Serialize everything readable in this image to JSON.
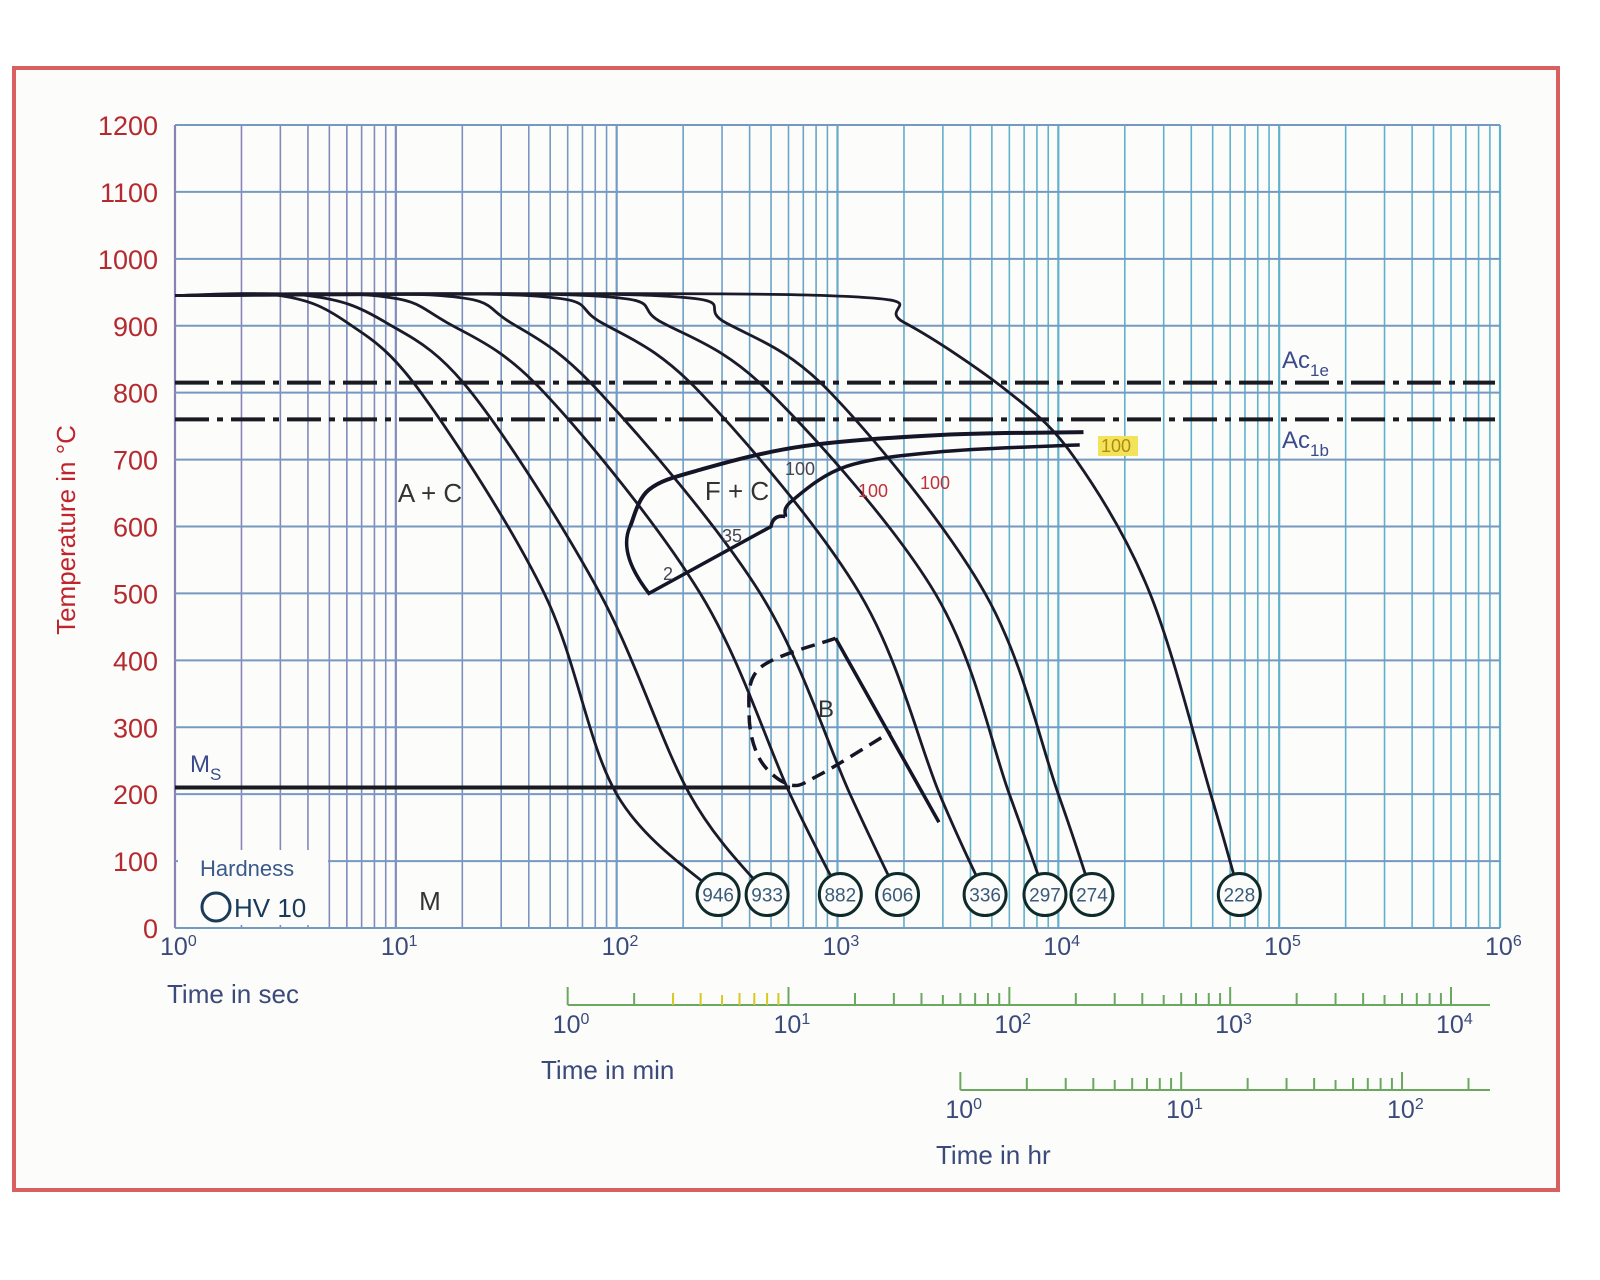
{
  "chart_data": {
    "type": "line",
    "subtype": "continuous cooling transformation diagram",
    "ylabel": "Temperature in °C",
    "ylim": [
      0,
      1200
    ],
    "yticks": [
      0,
      100,
      200,
      300,
      400,
      500,
      600,
      700,
      800,
      900,
      1000,
      1100,
      1200
    ],
    "x_scale": "log",
    "xlim_sec": [
      1,
      1000000
    ],
    "grid": true,
    "x_axes": [
      {
        "label": "Time in sec",
        "ticks": [
          {
            "base": "10",
            "exp": "0"
          },
          {
            "base": "10",
            "exp": "1"
          },
          {
            "base": "10",
            "exp": "2"
          },
          {
            "base": "10",
            "exp": "3"
          },
          {
            "base": "10",
            "exp": "4"
          },
          {
            "base": "10",
            "exp": "5"
          },
          {
            "base": "10",
            "exp": "6"
          }
        ],
        "unit_sec": 1
      },
      {
        "label": "Time in min",
        "ticks": [
          {
            "base": "10",
            "exp": "0"
          },
          {
            "base": "10",
            "exp": "1"
          },
          {
            "base": "10",
            "exp": "2"
          },
          {
            "base": "10",
            "exp": "3"
          },
          {
            "base": "10",
            "exp": "4"
          }
        ],
        "unit_sec": 60
      },
      {
        "label": "Time in hr",
        "ticks": [
          {
            "base": "10",
            "exp": "0"
          },
          {
            "base": "10",
            "exp": "1"
          },
          {
            "base": "10",
            "exp": "2"
          }
        ],
        "unit_sec": 3600
      }
    ],
    "cooling_curves": [
      {
        "hardness": "946",
        "points": [
          [
            1,
            945
          ],
          [
            3,
            945
          ],
          [
            6,
            905
          ],
          [
            13,
            800
          ],
          [
            47,
            500
          ],
          [
            100,
            200
          ],
          [
            288,
            50
          ]
        ]
      },
      {
        "hardness": "933",
        "points": [
          [
            1,
            945
          ],
          [
            4,
            945
          ],
          [
            9,
            905
          ],
          [
            22,
            800
          ],
          [
            84,
            500
          ],
          [
            214,
            200
          ],
          [
            480,
            50
          ]
        ]
      },
      {
        "hardness": "882",
        "points": [
          [
            1,
            945
          ],
          [
            8,
            945
          ],
          [
            17,
            905
          ],
          [
            47,
            800
          ],
          [
            239,
            500
          ],
          [
            610,
            200
          ],
          [
            1030,
            50
          ]
        ]
      },
      {
        "hardness": "606",
        "points": [
          [
            1,
            945
          ],
          [
            16,
            945
          ],
          [
            33,
            905
          ],
          [
            84,
            800
          ],
          [
            447,
            500
          ],
          [
            1140,
            200
          ],
          [
            1870,
            50
          ]
        ]
      },
      {
        "hardness": "336",
        "points": [
          [
            1,
            945
          ],
          [
            40,
            945
          ],
          [
            85,
            905
          ],
          [
            239,
            800
          ],
          [
            1260,
            500
          ],
          [
            2900,
            200
          ],
          [
            4660,
            50
          ]
        ]
      },
      {
        "hardness": "297",
        "points": [
          [
            1,
            945
          ],
          [
            75,
            945
          ],
          [
            160,
            905
          ],
          [
            495,
            800
          ],
          [
            2770,
            500
          ],
          [
            6000,
            200
          ],
          [
            8700,
            50
          ]
        ]
      },
      {
        "hardness": "274",
        "points": [
          [
            1,
            945
          ],
          [
            150,
            945
          ],
          [
            310,
            905
          ],
          [
            930,
            800
          ],
          [
            4660,
            500
          ],
          [
            10000,
            200
          ],
          [
            14200,
            50
          ]
        ]
      },
      {
        "hardness": "228",
        "points": [
          [
            1,
            945
          ],
          [
            900,
            945
          ],
          [
            2000,
            905
          ],
          [
            6000,
            800
          ],
          [
            12000,
            700
          ],
          [
            26000,
            500
          ],
          [
            49000,
            200
          ],
          [
            66000,
            50
          ]
        ]
      }
    ],
    "lines": [
      {
        "label_main": "Ac",
        "label_sub": "1e",
        "temperature": 815,
        "style": "dash-dot"
      },
      {
        "label_main": "Ac",
        "label_sub": "1b",
        "temperature": 760,
        "style": "dash-dot"
      },
      {
        "label_main": "M",
        "label_sub": "S",
        "temperature": 210,
        "t_end": 610,
        "style": "solid"
      }
    ],
    "regions": [
      {
        "label": "A + C"
      },
      {
        "label": "F + C"
      },
      {
        "label": "B"
      },
      {
        "label": "M"
      }
    ],
    "ferrite_start": [
      [
        115,
        600
      ],
      [
        140,
        655
      ],
      [
        240,
        685
      ],
      [
        700,
        720
      ],
      [
        3000,
        737
      ],
      [
        13000,
        741
      ]
    ],
    "ferrite_finish": [
      [
        580,
        615
      ],
      [
        620,
        638
      ],
      [
        1100,
        690
      ],
      [
        3000,
        712
      ],
      [
        12500,
        722
      ]
    ],
    "ferrite_lower": [
      [
        115,
        600
      ],
      [
        110,
        560
      ],
      [
        140,
        500
      ],
      [
        500,
        600
      ],
      [
        580,
        615
      ]
    ],
    "bainite_solid": [
      [
        980,
        433
      ],
      [
        2880,
        158
      ]
    ],
    "bainite_dashed": [
      [
        980,
        433
      ],
      [
        447,
        389
      ],
      [
        398,
        318
      ],
      [
        447,
        251
      ],
      [
        610,
        214
      ],
      [
        830,
        229
      ],
      [
        1740,
        293
      ]
    ],
    "transformation_percent_labels": [
      "2",
      "35",
      "100",
      "100",
      "100",
      "100"
    ],
    "legend": {
      "title": "Hardness",
      "entry": "HV 10"
    },
    "colors": {
      "curves": "#1a1a2a",
      "axis_labels": "#b52a30",
      "grid_left": "#8c80b8",
      "grid_right": "#5fb2cc",
      "frame": "#d9605e"
    }
  }
}
